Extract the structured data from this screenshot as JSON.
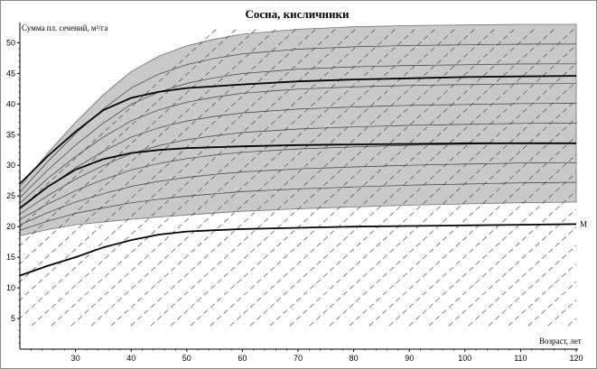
{
  "chart_data": {
    "type": "line",
    "title": "Сосна, кисличники",
    "xlabel": "Возраст, лет",
    "ylabel": "Сумма пл. сечений, м²/га",
    "xlim": [
      20,
      120
    ],
    "ylim": [
      0,
      53
    ],
    "x_ticks": [
      30,
      40,
      50,
      60,
      70,
      80,
      90,
      100,
      110,
      120
    ],
    "y_ticks": [
      5,
      10,
      15,
      20,
      25,
      30,
      35,
      40,
      45,
      50
    ],
    "grid": false,
    "line_end_label": "М",
    "upper_envelope": [
      [
        20,
        26.5
      ],
      [
        25,
        32
      ],
      [
        30,
        37
      ],
      [
        35,
        41.5
      ],
      [
        40,
        45.3
      ],
      [
        45,
        47.8
      ],
      [
        50,
        49.5
      ],
      [
        55,
        50.6
      ],
      [
        60,
        51.4
      ],
      [
        70,
        52.2
      ],
      [
        80,
        52.6
      ],
      [
        90,
        52.8
      ],
      [
        100,
        52.9
      ],
      [
        110,
        53
      ],
      [
        120,
        53
      ]
    ],
    "lower_envelope": [
      [
        20,
        18.5
      ],
      [
        25,
        19.5
      ],
      [
        30,
        20.3
      ],
      [
        40,
        21.2
      ],
      [
        50,
        21.9
      ],
      [
        60,
        22.5
      ],
      [
        70,
        22.9
      ],
      [
        80,
        23.2
      ],
      [
        90,
        23.5
      ],
      [
        100,
        23.7
      ],
      [
        110,
        23.9
      ],
      [
        120,
        24
      ]
    ],
    "series": [
      {
        "values": [
          [
            20,
            27
          ],
          [
            25,
            31.5
          ],
          [
            30,
            35.5
          ],
          [
            35,
            39
          ],
          [
            40,
            41
          ],
          [
            45,
            42
          ],
          [
            50,
            42.6
          ],
          [
            60,
            43.2
          ],
          [
            70,
            43.7
          ],
          [
            80,
            44
          ],
          [
            90,
            44.2
          ],
          [
            100,
            44.4
          ],
          [
            110,
            44.5
          ],
          [
            120,
            44.6
          ]
        ]
      },
      {
        "values": [
          [
            20,
            23
          ],
          [
            25,
            26.5
          ],
          [
            30,
            29.3
          ],
          [
            35,
            31
          ],
          [
            40,
            32
          ],
          [
            45,
            32.5
          ],
          [
            50,
            32.8
          ],
          [
            60,
            33.1
          ],
          [
            70,
            33.3
          ],
          [
            80,
            33.4
          ],
          [
            90,
            33.5
          ],
          [
            100,
            33.6
          ],
          [
            110,
            33.6
          ],
          [
            120,
            33.6
          ]
        ]
      },
      {
        "values": [
          [
            20,
            12
          ],
          [
            25,
            13.6
          ],
          [
            30,
            15
          ],
          [
            35,
            16.6
          ],
          [
            40,
            17.8
          ],
          [
            45,
            18.7
          ],
          [
            50,
            19.2
          ],
          [
            55,
            19.4
          ],
          [
            60,
            19.6
          ],
          [
            70,
            19.8
          ],
          [
            80,
            20
          ],
          [
            90,
            20.1
          ],
          [
            100,
            20.2
          ],
          [
            110,
            20.3
          ],
          [
            120,
            20.4
          ]
        ]
      }
    ]
  }
}
